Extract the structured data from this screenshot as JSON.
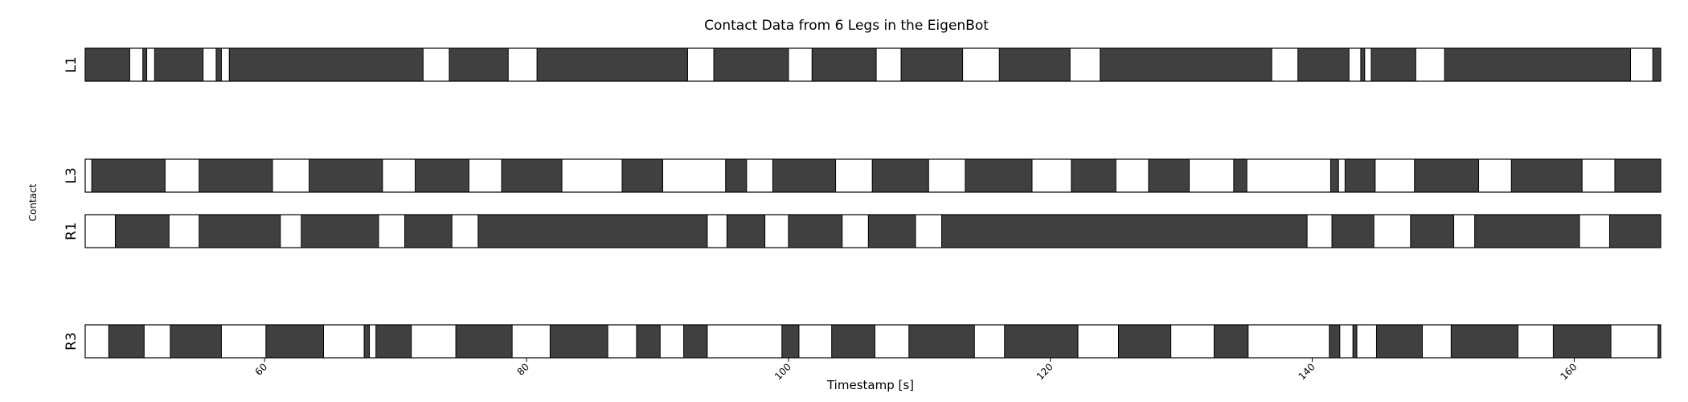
{
  "chart_data": {
    "type": "broken_barh",
    "title": "Contact Data from 6 Legs in the EigenBot",
    "xlabel": "Timestamp [s]",
    "ylabel": "Contact",
    "xlim": [
      46.3,
      166.6
    ],
    "xticks": [
      60,
      80,
      100,
      120,
      140,
      160
    ],
    "grid": false,
    "legend": "none",
    "colors": {
      "contact": "#404040",
      "background": "#ffffff",
      "edge": "#000000"
    },
    "rows": [
      {
        "name": "L1",
        "intervals": [
          [
            46.3,
            49.7
          ],
          [
            50.7,
            51.0
          ],
          [
            51.6,
            55.3
          ],
          [
            56.3,
            56.7
          ],
          [
            57.3,
            72.1
          ],
          [
            74.1,
            78.6
          ],
          [
            80.8,
            92.3
          ],
          [
            94.3,
            100.0
          ],
          [
            101.8,
            106.7
          ],
          [
            108.6,
            113.3
          ],
          [
            116.1,
            121.5
          ],
          [
            123.8,
            136.9
          ],
          [
            138.9,
            142.8
          ],
          [
            143.7,
            144.0
          ],
          [
            144.5,
            147.9
          ],
          [
            150.1,
            164.3
          ],
          [
            166.0,
            166.6
          ]
        ]
      },
      {
        "name": "L3",
        "intervals": [
          [
            46.8,
            52.4
          ],
          [
            55.0,
            60.6
          ],
          [
            63.4,
            69.0
          ],
          [
            71.5,
            75.6
          ],
          [
            78.1,
            82.7
          ],
          [
            87.3,
            90.4
          ],
          [
            95.2,
            96.8
          ],
          [
            98.8,
            103.6
          ],
          [
            106.4,
            110.7
          ],
          [
            113.5,
            118.6
          ],
          [
            121.6,
            125.0
          ],
          [
            127.5,
            130.6
          ],
          [
            134.0,
            135.0
          ],
          [
            141.4,
            142.0
          ],
          [
            142.5,
            144.8
          ],
          [
            147.8,
            152.7
          ],
          [
            155.2,
            160.6
          ],
          [
            163.1,
            166.6
          ]
        ]
      },
      {
        "name": "R1",
        "intervals": [
          [
            48.6,
            52.7
          ],
          [
            55.0,
            61.2
          ],
          [
            62.8,
            68.7
          ],
          [
            70.7,
            74.3
          ],
          [
            76.3,
            93.8
          ],
          [
            95.3,
            98.2
          ],
          [
            100.0,
            104.1
          ],
          [
            106.1,
            109.7
          ],
          [
            111.7,
            139.6
          ],
          [
            141.5,
            144.7
          ],
          [
            147.5,
            150.8
          ],
          [
            152.4,
            160.4
          ],
          [
            162.7,
            166.6
          ]
        ]
      },
      {
        "name": "R3",
        "intervals": [
          [
            48.1,
            50.8
          ],
          [
            52.8,
            56.7
          ],
          [
            60.1,
            64.5
          ],
          [
            67.6,
            68.0
          ],
          [
            68.5,
            71.2
          ],
          [
            74.6,
            78.9
          ],
          [
            81.8,
            86.2
          ],
          [
            88.4,
            90.2
          ],
          [
            92.0,
            93.8
          ],
          [
            99.5,
            100.8
          ],
          [
            103.3,
            106.6
          ],
          [
            109.2,
            114.2
          ],
          [
            116.5,
            122.1
          ],
          [
            125.2,
            129.2
          ],
          [
            132.5,
            135.1
          ],
          [
            141.3,
            142.1
          ],
          [
            143.1,
            143.4
          ],
          [
            144.9,
            148.4
          ],
          [
            150.6,
            155.7
          ],
          [
            158.4,
            162.8
          ],
          [
            166.4,
            166.6
          ]
        ]
      }
    ]
  }
}
